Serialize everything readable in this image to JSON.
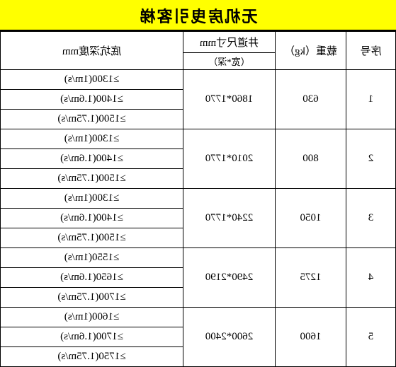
{
  "title": "无机房曳引客梯",
  "headers": {
    "seq": "序号",
    "load": "载重（kg）",
    "shaft_top": "井道尺寸mm",
    "shaft_sub": "（宽*深）",
    "pit": "底坑深度mm"
  },
  "groups": [
    {
      "seq": "1",
      "load": "630",
      "shaft": "1860*1770",
      "pits": [
        "≥1300(1m/s)",
        "≥1400(1.6m/s)",
        "≥1500(1.75m/s)"
      ]
    },
    {
      "seq": "2",
      "load": "800",
      "shaft": "2010*1770",
      "pits": [
        "≥1300(1m/s)",
        "≥1400(1.6m/s)",
        "≥1500(1.75m/s)"
      ]
    },
    {
      "seq": "3",
      "load": "1050",
      "shaft": "2240*1770",
      "pits": [
        "≥1300(1m/s)",
        "≥1400(1.6m/s)",
        "≥1500(1.75m/s)"
      ]
    },
    {
      "seq": "4",
      "load": "1275",
      "shaft": "2490*2190",
      "pits": [
        "≥1550(1m/s)",
        "≥1650(1.6m/s)",
        "≥1700(1.75m/s)"
      ]
    },
    {
      "seq": "5",
      "load": "1600",
      "shaft": "2600*2400",
      "pits": [
        "≥1600(1m/s)",
        "≥1700(1.6m/s)",
        "≥1750(1.75m/s)"
      ]
    }
  ],
  "style": {
    "title_bg": "#ffff00",
    "border_color": "#000000",
    "bg": "#ffffff",
    "font": "SimSun",
    "title_fontsize": 22,
    "cell_fontsize": 15
  }
}
